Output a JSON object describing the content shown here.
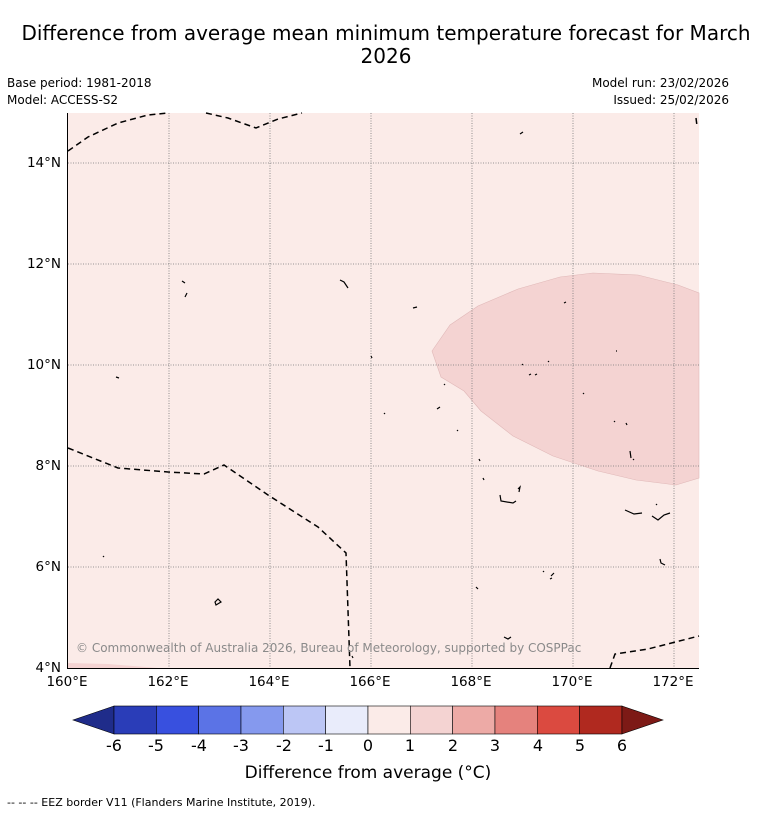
{
  "title": "Difference from average mean minimum temperature forecast for March 2026",
  "base_period": "Base period: 1981-2018",
  "model": "Model: ACCESS-S2",
  "model_run": "Model run: 23/02/2026",
  "issued": "Issued: 25/02/2026",
  "copyright": "© Commonwealth of Australia 2026, Bureau of Meteorology, supported by COSPPac",
  "map": {
    "x_ticks": [
      "160°E",
      "162°E",
      "164°E",
      "166°E",
      "168°E",
      "170°E",
      "172°E"
    ],
    "y_ticks": [
      "14°N",
      "12°N",
      "10°N",
      "8°N",
      "6°N",
      "4°N"
    ],
    "background_category": "0 to 1",
    "region_category": "1 to 2",
    "gridlines": "dotted"
  },
  "colorbar": {
    "title": "Difference from average (°C)",
    "ticks": [
      "-6",
      "-5",
      "-4",
      "-3",
      "-2",
      "-1",
      "0",
      "1",
      "2",
      "3",
      "4",
      "5",
      "6"
    ],
    "colors": [
      "#1f2c8a",
      "#2a3db8",
      "#3850df",
      "#5b73e6",
      "#8599ee",
      "#bcc6f5",
      "#e9ecfb",
      "#fbebe8",
      "#f4d3d2",
      "#edaaa6",
      "#e5827d",
      "#db4a40",
      "#b0291f",
      "#7d1a16"
    ]
  },
  "footer": "--  --  -- EEZ border V11 (Flanders Marine Institute, 2019)."
}
